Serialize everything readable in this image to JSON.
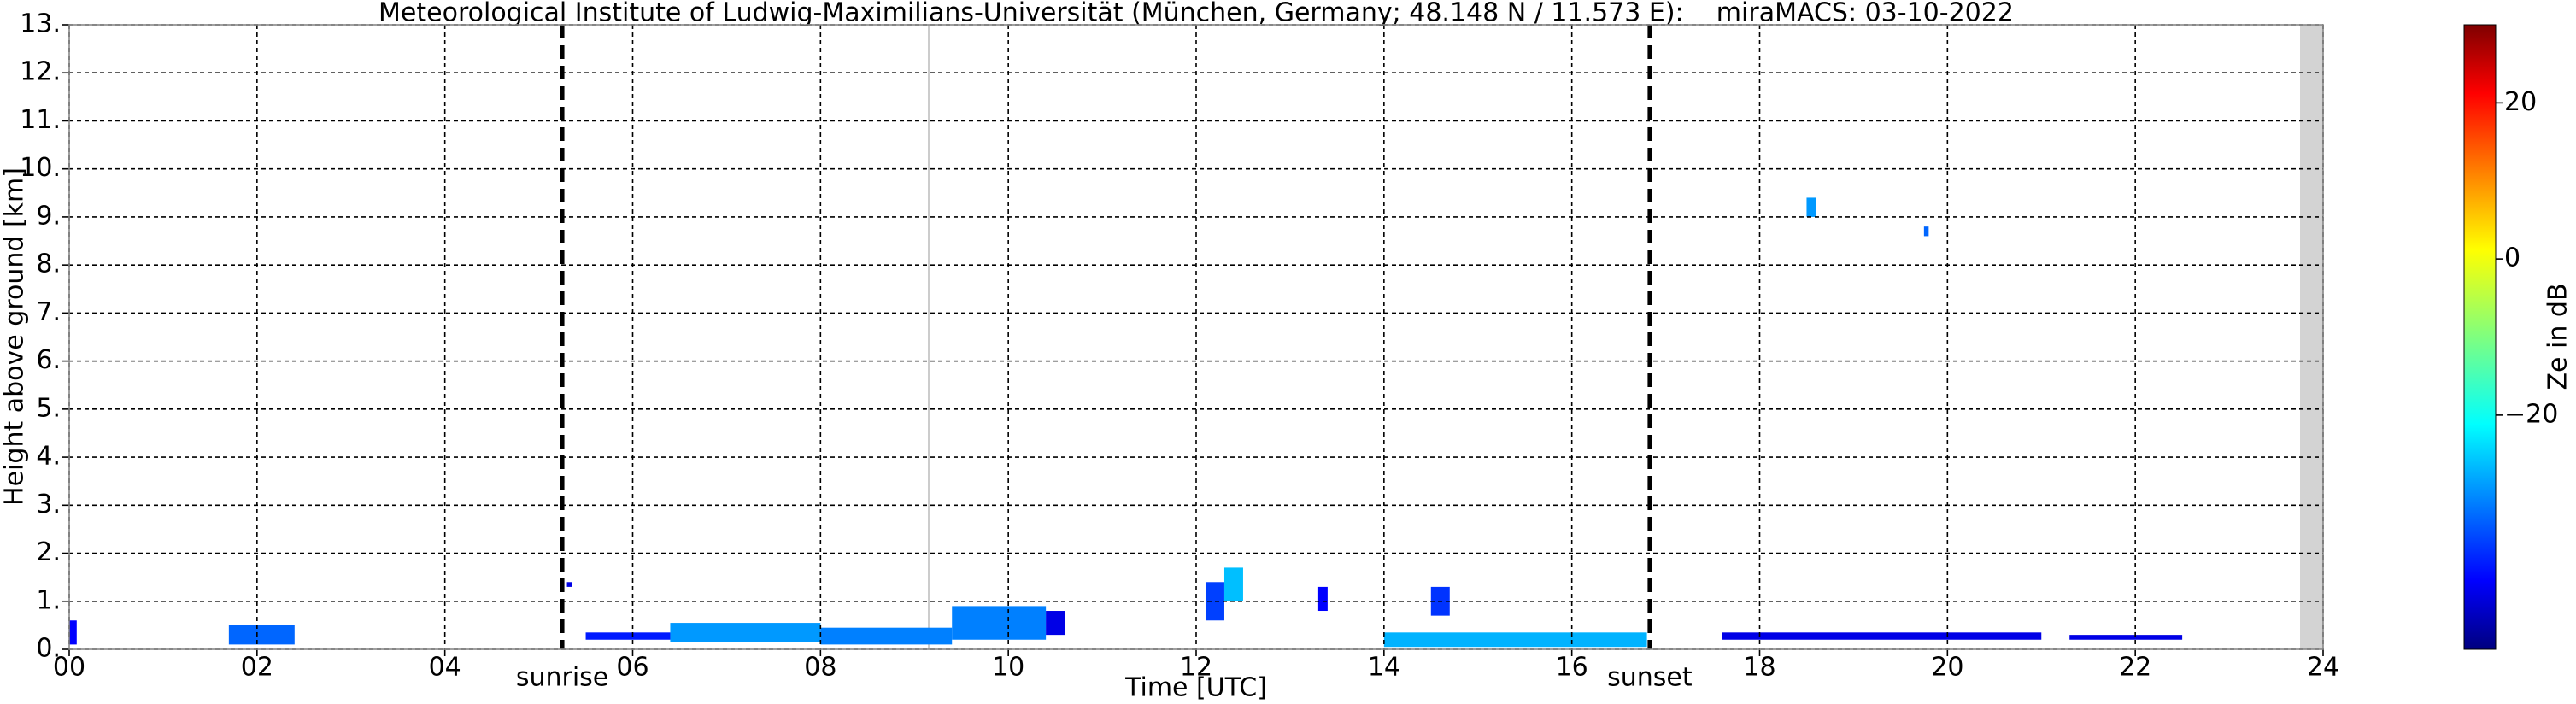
{
  "chart_data": {
    "type": "time-height",
    "title": "Meteorological Institute of Ludwig-Maximilians-Universität (München, Germany; 48.148 N / 11.573 E):    miraMACS: 03-10-2022",
    "x_label": "Time [UTC]",
    "y_label": "Height above ground [km]",
    "xlim": [
      0,
      24
    ],
    "xticks": [
      {
        "value": 0,
        "label": "00"
      },
      {
        "value": 2,
        "label": "02"
      },
      {
        "value": 4,
        "label": "04"
      },
      {
        "value": 6,
        "label": "06"
      },
      {
        "value": 8,
        "label": "08"
      },
      {
        "value": 10,
        "label": "10"
      },
      {
        "value": 12,
        "label": "12"
      },
      {
        "value": 14,
        "label": "14"
      },
      {
        "value": 16,
        "label": "16"
      },
      {
        "value": 18,
        "label": "18"
      },
      {
        "value": 20,
        "label": "20"
      },
      {
        "value": 22,
        "label": "22"
      },
      {
        "value": 24,
        "label": "24"
      }
    ],
    "ylim": [
      0,
      13
    ],
    "yticks": [
      {
        "value": 0,
        "label": "0."
      },
      {
        "value": 1,
        "label": "1."
      },
      {
        "value": 2,
        "label": "2."
      },
      {
        "value": 3,
        "label": "3."
      },
      {
        "value": 4,
        "label": "4."
      },
      {
        "value": 5,
        "label": "5."
      },
      {
        "value": 6,
        "label": "6."
      },
      {
        "value": 7,
        "label": "7."
      },
      {
        "value": 8,
        "label": "8."
      },
      {
        "value": 9,
        "label": "9."
      },
      {
        "value": 10,
        "label": "10."
      },
      {
        "value": 11,
        "label": "11."
      },
      {
        "value": 12,
        "label": "12."
      },
      {
        "value": 13,
        "label": "13."
      }
    ],
    "grid": true,
    "markers": [
      {
        "name": "sunrise",
        "x": 5.25
      },
      {
        "name": "sunset",
        "x": 16.83
      }
    ],
    "colorbar": {
      "label": "Ze in dB",
      "lim": [
        -50,
        30
      ],
      "ticks": [
        {
          "value": -20,
          "label": "−20"
        },
        0,
        20
      ],
      "colormap": "jet"
    },
    "echoes": [
      [
        0.0,
        0.08,
        0.1,
        0.6,
        -40
      ],
      [
        1.7,
        2.4,
        0.1,
        0.5,
        -32
      ],
      [
        5.3,
        5.35,
        1.3,
        1.4,
        -42
      ],
      [
        5.5,
        6.4,
        0.2,
        0.35,
        -38
      ],
      [
        6.4,
        8.0,
        0.15,
        0.55,
        -28
      ],
      [
        8.0,
        9.4,
        0.1,
        0.45,
        -30
      ],
      [
        9.4,
        10.4,
        0.2,
        0.9,
        -30
      ],
      [
        10.4,
        10.6,
        0.3,
        0.8,
        -42
      ],
      [
        12.1,
        12.3,
        0.6,
        1.4,
        -35
      ],
      [
        12.3,
        12.5,
        1.0,
        1.7,
        -25
      ],
      [
        13.3,
        13.4,
        0.8,
        1.3,
        -40
      ],
      [
        14.5,
        14.7,
        0.7,
        1.3,
        -36
      ],
      [
        14.0,
        16.8,
        0.05,
        0.35,
        -26
      ],
      [
        17.6,
        21.0,
        0.2,
        0.35,
        -42
      ],
      [
        21.3,
        22.5,
        0.2,
        0.3,
        -42
      ],
      [
        18.5,
        18.6,
        9.0,
        9.4,
        -28
      ],
      [
        19.75,
        19.8,
        8.6,
        8.8,
        -32
      ]
    ]
  }
}
